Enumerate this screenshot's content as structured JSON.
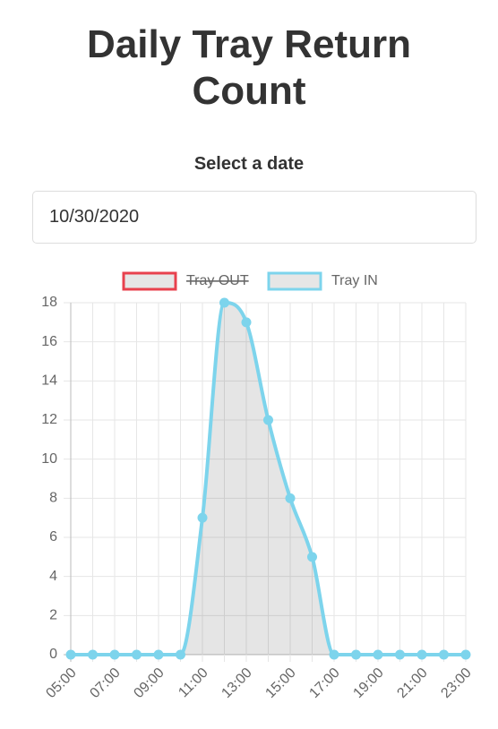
{
  "header": {
    "title": "Daily Tray Return Count"
  },
  "form": {
    "label": "Select a date",
    "date": "10/30/2020"
  },
  "chart_data": {
    "type": "line",
    "categories": [
      "05:00",
      null,
      "07:00",
      null,
      "09:00",
      null,
      "11:00",
      null,
      "13:00",
      null,
      "15:00",
      null,
      "17:00",
      null,
      "19:00",
      null,
      "21:00",
      null,
      "23:00"
    ],
    "series": [
      {
        "name": "Tray OUT",
        "color": "#e8414e",
        "hidden": true
      },
      {
        "name": "Tray IN",
        "color": "#7dd4ec",
        "values": [
          0,
          0,
          0,
          0,
          0,
          0,
          7,
          18,
          17,
          12,
          8,
          5,
          0,
          0,
          0,
          0,
          0,
          0,
          0
        ]
      }
    ],
    "ylim": [
      0,
      18
    ],
    "yticks": [
      0,
      2,
      4,
      6,
      8,
      10,
      12,
      14,
      16,
      18
    ],
    "grid": true,
    "legend": "top"
  }
}
